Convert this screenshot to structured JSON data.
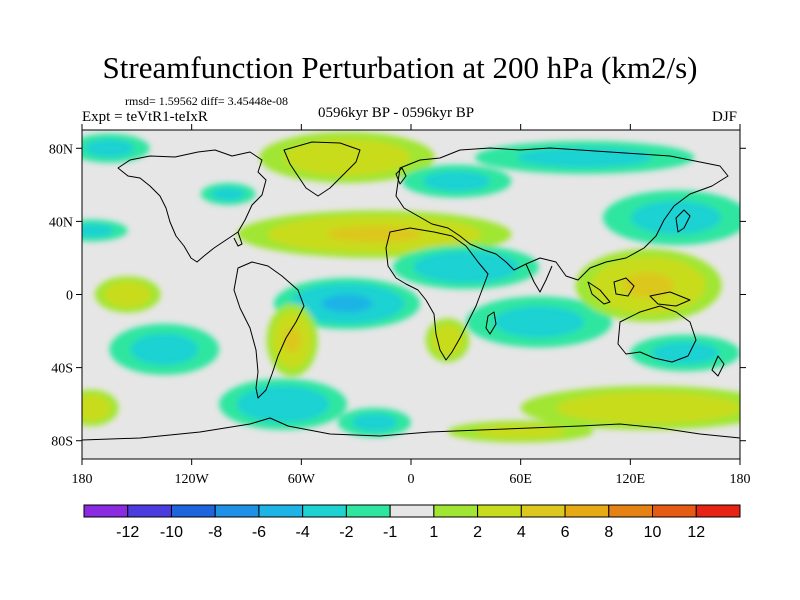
{
  "title": "Streamfunction Perturbation at 200 hPa (km2/s)",
  "stats": "rmsd= 1.59562  diff= 3.45448e-08",
  "experiment": "Expt = teVtR1-teIxR",
  "period": "0596kyr BP - 0596kyr BP",
  "season": "DJF",
  "map": {
    "projection": "cylindrical equidistant",
    "lon_range": [
      -180,
      180
    ],
    "lat_range": [
      -90,
      90
    ],
    "background_color": "#e6e6e6",
    "coastline_color": "#000000",
    "lat_ticks": [
      {
        "value": 80,
        "label": "80N"
      },
      {
        "value": 40,
        "label": "40N"
      },
      {
        "value": 0,
        "label": "0"
      },
      {
        "value": -40,
        "label": "40S"
      },
      {
        "value": -80,
        "label": "80S"
      }
    ],
    "lon_ticks": [
      {
        "value": -180,
        "label": "180"
      },
      {
        "value": -120,
        "label": "120W"
      },
      {
        "value": -60,
        "label": "60W"
      },
      {
        "value": 0,
        "label": "0"
      },
      {
        "value": 60,
        "label": "60E"
      },
      {
        "value": 120,
        "label": "120E"
      },
      {
        "value": 180,
        "label": "180"
      }
    ]
  },
  "features": [
    {
      "name": "anomaly-greenland-north-atlantic",
      "lon": -35,
      "lat": 75,
      "rx": 48,
      "ry": 14,
      "value": 3
    },
    {
      "name": "anomaly-north-pacific",
      "lon": -165,
      "lat": 80,
      "rx": 22,
      "ry": 8,
      "value": -2
    },
    {
      "name": "anomaly-siberia",
      "lon": 95,
      "lat": 75,
      "rx": 60,
      "ry": 9,
      "value": -2
    },
    {
      "name": "anomaly-europe",
      "lon": 25,
      "lat": 62,
      "rx": 30,
      "ry": 9,
      "value": -2
    },
    {
      "name": "anomaly-north-america",
      "lon": -100,
      "lat": 55,
      "rx": 15,
      "ry": 6,
      "value": -2
    },
    {
      "name": "anomaly-atlantic-subtropical",
      "lon": -20,
      "lat": 33,
      "rx": 75,
      "ry": 13,
      "value": 4
    },
    {
      "name": "anomaly-east-asia-jet",
      "lon": 145,
      "lat": 42,
      "rx": 40,
      "ry": 15,
      "value": -2
    },
    {
      "name": "anomaly-pacific-northwest",
      "lon": -175,
      "lat": 35,
      "rx": 20,
      "ry": 6,
      "value": -2
    },
    {
      "name": "anomaly-north-africa",
      "lon": 30,
      "lat": 15,
      "rx": 40,
      "ry": 12,
      "value": -3
    },
    {
      "name": "anomaly-tropical-atlantic",
      "lon": -35,
      "lat": -5,
      "rx": 40,
      "ry": 14,
      "value": -4
    },
    {
      "name": "anomaly-indian-ocean",
      "lon": 70,
      "lat": -15,
      "rx": 40,
      "ry": 14,
      "value": -2
    },
    {
      "name": "anomaly-maritime-continent",
      "lon": 130,
      "lat": 5,
      "rx": 40,
      "ry": 20,
      "value": 4
    },
    {
      "name": "anomaly-central-pacific",
      "lon": -155,
      "lat": 0,
      "rx": 18,
      "ry": 10,
      "value": 3
    },
    {
      "name": "anomaly-south-america",
      "lon": -65,
      "lat": -25,
      "rx": 14,
      "ry": 20,
      "value": 4
    },
    {
      "name": "anomaly-southern-africa",
      "lon": 20,
      "lat": -25,
      "rx": 12,
      "ry": 12,
      "value": 3
    },
    {
      "name": "anomaly-south-pacific",
      "lon": -135,
      "lat": -30,
      "rx": 30,
      "ry": 14,
      "value": -2
    },
    {
      "name": "anomaly-australia-south",
      "lon": 150,
      "lat": -32,
      "rx": 30,
      "ry": 10,
      "value": -2
    },
    {
      "name": "anomaly-drake-passage",
      "lon": -70,
      "lat": -60,
      "rx": 35,
      "ry": 14,
      "value": -3
    },
    {
      "name": "anomaly-south-atlantic",
      "lon": -20,
      "lat": -70,
      "rx": 20,
      "ry": 8,
      "value": -2
    },
    {
      "name": "anomaly-southern-ocean-east",
      "lon": 130,
      "lat": -62,
      "rx": 70,
      "ry": 12,
      "value": 3
    },
    {
      "name": "anomaly-southern-ocean-west",
      "lon": -175,
      "lat": -62,
      "rx": 15,
      "ry": 10,
      "value": 3
    },
    {
      "name": "anomaly-antarctic-coast",
      "lon": 60,
      "lat": -75,
      "rx": 40,
      "ry": 6,
      "value": 2
    }
  ],
  "colorbar": {
    "colors": [
      "#8a2be2",
      "#4b3ce0",
      "#1e64dc",
      "#1e90e6",
      "#1eb4e6",
      "#1ed2d2",
      "#2ee6a0",
      "#e6e6e6",
      "#a0e632",
      "#c8dc1e",
      "#dcc81e",
      "#e6aa14",
      "#e68214",
      "#e65a14",
      "#e62314"
    ],
    "labels": [
      "-12",
      "-10",
      "-8",
      "-6",
      "-4",
      "-2",
      "-1",
      "1",
      "2",
      "4",
      "6",
      "8",
      "10",
      "12"
    ]
  }
}
